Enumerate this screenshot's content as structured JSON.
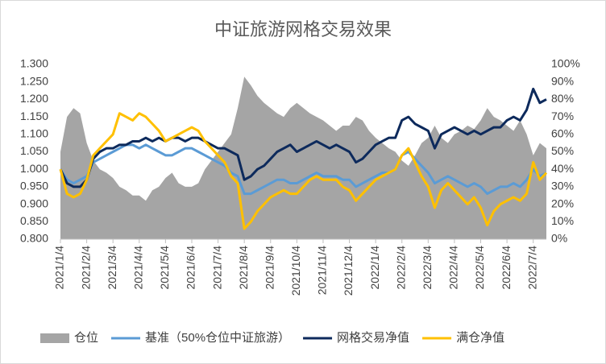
{
  "chart_data": {
    "type": "line",
    "title": "中证旅游网格交易效果",
    "categories": [
      "2021/1/4",
      null,
      null,
      null,
      "2021/2/4",
      null,
      null,
      null,
      "2021/3/4",
      null,
      null,
      null,
      "2021/4/4",
      null,
      null,
      null,
      "2021/5/4",
      null,
      null,
      null,
      "2021/6/4",
      null,
      null,
      null,
      "2021/7/4",
      null,
      null,
      null,
      "2021/8/4",
      null,
      null,
      null,
      "2021/9/4",
      null,
      null,
      null,
      "2021/10/4",
      null,
      null,
      null,
      "2021/11/4",
      null,
      null,
      null,
      "2021/12/4",
      null,
      null,
      null,
      "2022/1/4",
      null,
      null,
      null,
      "2022/2/4",
      null,
      null,
      null,
      "2022/3/4",
      null,
      null,
      null,
      "2022/4/4",
      null,
      null,
      null,
      "2022/5/4",
      null,
      null,
      null,
      "2022/6/4",
      null,
      null,
      null,
      "2022/7/4",
      null,
      null
    ],
    "series": [
      {
        "name": "仓位",
        "color": "#a5a5a5",
        "axis": "y2",
        "kind": "area",
        "values": [
          50,
          70,
          75,
          72,
          55,
          45,
          40,
          38,
          35,
          30,
          28,
          25,
          25,
          22,
          28,
          30,
          35,
          38,
          32,
          30,
          30,
          32,
          40,
          45,
          50,
          55,
          60,
          75,
          93,
          88,
          82,
          78,
          75,
          72,
          70,
          75,
          78,
          75,
          72,
          70,
          68,
          65,
          62,
          65,
          65,
          70,
          68,
          62,
          58,
          55,
          52,
          50,
          45,
          42,
          48,
          55,
          58,
          65,
          58,
          55,
          60,
          62,
          65,
          63,
          68,
          75,
          70,
          68,
          65,
          62,
          68,
          60,
          48,
          55,
          52
        ]
      },
      {
        "name": "基准（50%仓位中证旅游）",
        "color": "#5b9bd5",
        "values": [
          1.0,
          0.97,
          0.96,
          0.97,
          0.98,
          1.02,
          1.03,
          1.04,
          1.05,
          1.06,
          1.07,
          1.07,
          1.06,
          1.07,
          1.06,
          1.05,
          1.04,
          1.04,
          1.05,
          1.06,
          1.06,
          1.05,
          1.04,
          1.03,
          1.02,
          1.01,
          0.99,
          0.98,
          0.93,
          0.93,
          0.94,
          0.95,
          0.96,
          0.97,
          0.97,
          0.96,
          0.96,
          0.97,
          0.98,
          0.99,
          0.98,
          0.98,
          0.98,
          0.97,
          0.97,
          0.95,
          0.96,
          0.97,
          0.98,
          0.99,
          0.99,
          1.0,
          1.04,
          1.05,
          1.03,
          1.01,
          0.99,
          0.96,
          0.97,
          0.98,
          0.97,
          0.96,
          0.95,
          0.96,
          0.95,
          0.93,
          0.94,
          0.95,
          0.95,
          0.96,
          0.95,
          0.97,
          1.0,
          0.98,
          0.99
        ]
      },
      {
        "name": "网格交易净值",
        "color": "#0d2a5c",
        "values": [
          1.0,
          0.96,
          0.95,
          0.95,
          0.97,
          1.03,
          1.05,
          1.06,
          1.06,
          1.07,
          1.07,
          1.08,
          1.08,
          1.09,
          1.08,
          1.09,
          1.08,
          1.09,
          1.09,
          1.08,
          1.09,
          1.09,
          1.08,
          1.07,
          1.06,
          1.06,
          1.05,
          1.04,
          0.97,
          0.98,
          1.0,
          1.01,
          1.03,
          1.05,
          1.06,
          1.07,
          1.05,
          1.06,
          1.07,
          1.08,
          1.07,
          1.06,
          1.07,
          1.06,
          1.05,
          1.02,
          1.03,
          1.05,
          1.07,
          1.08,
          1.09,
          1.09,
          1.14,
          1.15,
          1.13,
          1.12,
          1.11,
          1.06,
          1.1,
          1.11,
          1.12,
          1.11,
          1.1,
          1.11,
          1.1,
          1.11,
          1.12,
          1.12,
          1.14,
          1.15,
          1.14,
          1.17,
          1.23,
          1.19,
          1.2
        ]
      },
      {
        "name": "满仓净值",
        "color": "#ffc000",
        "values": [
          1.0,
          0.93,
          0.92,
          0.93,
          0.97,
          1.04,
          1.06,
          1.08,
          1.1,
          1.16,
          1.15,
          1.14,
          1.16,
          1.15,
          1.13,
          1.11,
          1.08,
          1.09,
          1.1,
          1.11,
          1.12,
          1.11,
          1.08,
          1.06,
          1.04,
          1.02,
          0.98,
          0.96,
          0.83,
          0.85,
          0.88,
          0.9,
          0.92,
          0.93,
          0.94,
          0.93,
          0.93,
          0.95,
          0.97,
          0.98,
          0.97,
          0.97,
          0.97,
          0.95,
          0.94,
          0.91,
          0.93,
          0.95,
          0.97,
          0.98,
          0.99,
          1.0,
          1.04,
          1.06,
          1.02,
          0.98,
          0.95,
          0.89,
          0.94,
          0.96,
          0.94,
          0.92,
          0.9,
          0.92,
          0.89,
          0.84,
          0.88,
          0.9,
          0.91,
          0.92,
          0.91,
          0.93,
          1.02,
          0.97,
          0.99
        ]
      }
    ],
    "ylim": [
      0.8,
      1.3
    ],
    "yticks": [
      {
        "value": 0.8,
        "label": "0.800"
      },
      {
        "value": 0.85,
        "label": "0.850"
      },
      {
        "value": 0.9,
        "label": "0.900"
      },
      {
        "value": 0.95,
        "label": "0.950"
      },
      {
        "value": 1.0,
        "label": "1.000"
      },
      {
        "value": 1.05,
        "label": "1.050"
      },
      {
        "value": 1.1,
        "label": "1.100"
      },
      {
        "value": 1.15,
        "label": "1.150"
      },
      {
        "value": 1.2,
        "label": "1.200"
      },
      {
        "value": 1.25,
        "label": "1.250"
      },
      {
        "value": 1.3,
        "label": "1.300"
      }
    ],
    "y2lim": [
      0,
      100
    ],
    "y2ticks": [
      {
        "value": 0,
        "label": "0%"
      },
      {
        "value": 10,
        "label": "10%"
      },
      {
        "value": 20,
        "label": "20%"
      },
      {
        "value": 30,
        "label": "30%"
      },
      {
        "value": 40,
        "label": "40%"
      },
      {
        "value": 50,
        "label": "50%"
      },
      {
        "value": 60,
        "label": "60%"
      },
      {
        "value": 70,
        "label": "70%"
      },
      {
        "value": 80,
        "label": "80%"
      },
      {
        "value": 90,
        "label": "90%"
      },
      {
        "value": 100,
        "label": "100%"
      }
    ],
    "legend": "bottom"
  }
}
